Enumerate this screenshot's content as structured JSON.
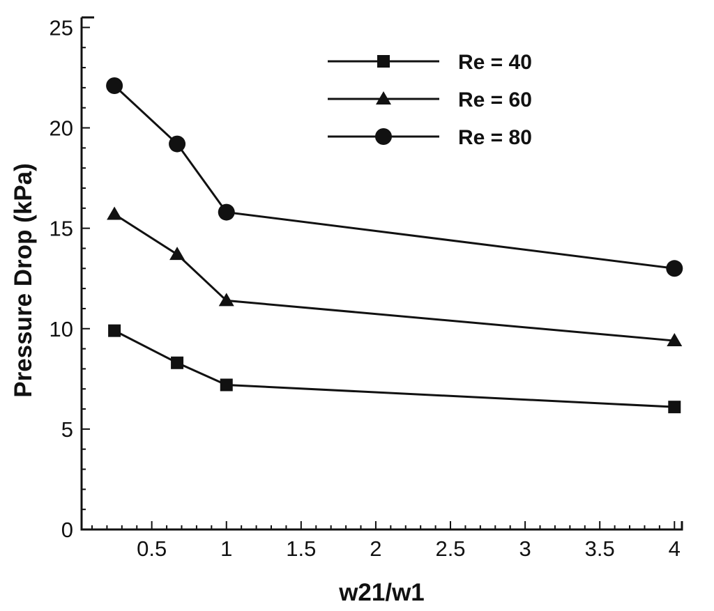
{
  "chart_data": {
    "type": "line",
    "title": "",
    "xlabel": "w21/w1",
    "ylabel": "Pressure Drop (kPa)",
    "xlim": [
      0.03,
      4.05
    ],
    "ylim": [
      0,
      25.5
    ],
    "x_ticks": [
      0.5,
      1,
      1.5,
      2,
      2.5,
      3,
      3.5,
      4
    ],
    "x_tick_labels": [
      "0.5",
      "1",
      "1.5",
      "2",
      "2.5",
      "3",
      "3.5",
      "4"
    ],
    "y_ticks": [
      0,
      5,
      10,
      15,
      20,
      25
    ],
    "y_tick_labels": [
      "0",
      "5",
      "10",
      "15",
      "20",
      "25"
    ],
    "grid": false,
    "legend_position": "top-right",
    "series": [
      {
        "name": "Re = 40",
        "marker": "square",
        "x": [
          0.25,
          0.67,
          1,
          4
        ],
        "y": [
          9.9,
          8.3,
          7.2,
          6.1
        ]
      },
      {
        "name": "Re = 60",
        "marker": "triangle",
        "x": [
          0.25,
          0.67,
          1,
          4
        ],
        "y": [
          15.7,
          13.7,
          11.4,
          9.4
        ]
      },
      {
        "name": "Re = 80",
        "marker": "circle",
        "x": [
          0.25,
          0.67,
          1,
          4
        ],
        "y": [
          22.1,
          19.2,
          15.8,
          13.0
        ]
      }
    ]
  }
}
